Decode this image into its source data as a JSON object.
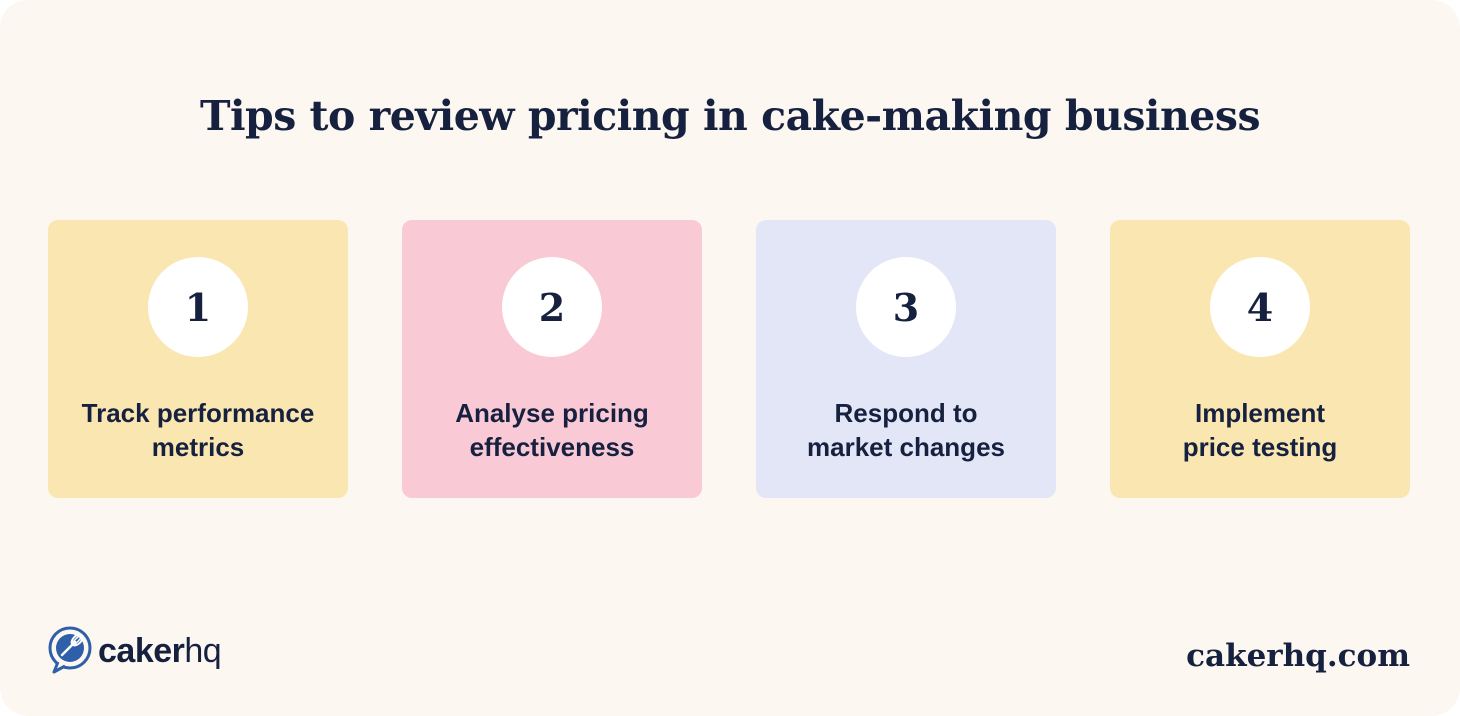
{
  "title": "Tips to review pricing in cake-making business",
  "colors": {
    "background": "#fcf8f1",
    "text": "#16213f",
    "card_yellow": "#fae6b1",
    "card_pink": "#f9c9d6",
    "card_lavender": "#e3e6f6",
    "circle": "#ffffff"
  },
  "cards": [
    {
      "number": "1",
      "line1": "Track performance",
      "line2": "metrics",
      "color": "#fae6b1"
    },
    {
      "number": "2",
      "line1": "Analyse pricing",
      "line2": "effectiveness",
      "color": "#f9c9d6"
    },
    {
      "number": "3",
      "line1": "Respond to",
      "line2": "market changes",
      "color": "#e3e6f6"
    },
    {
      "number": "4",
      "line1": "Implement",
      "line2": "price testing",
      "color": "#fae6b1"
    }
  ],
  "logo": {
    "icon": "whisk-speech-bubble-icon",
    "text_bold": "caker",
    "text_light": "hq"
  },
  "footer": {
    "url": "cakerhq.com"
  }
}
